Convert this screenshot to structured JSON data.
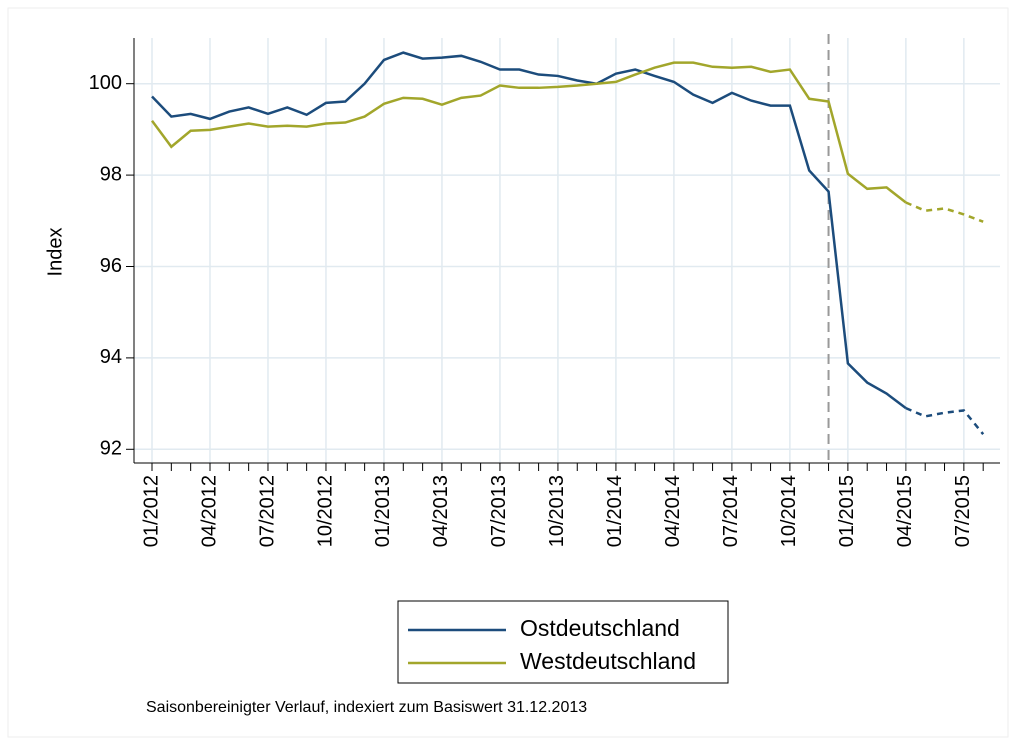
{
  "chart_data": {
    "type": "line",
    "y_label": "Index",
    "note": "Saisonbereinigter Verlauf, indexiert zum Basiswert 31.12.2013",
    "categories": [
      "01/2012",
      null,
      null,
      "04/2012",
      null,
      null,
      "07/2012",
      null,
      null,
      "10/2012",
      null,
      null,
      "01/2013",
      null,
      null,
      "04/2013",
      null,
      null,
      "07/2013",
      null,
      null,
      "10/2013",
      null,
      null,
      "01/2014",
      null,
      null,
      "04/2014",
      null,
      null,
      "07/2014",
      null,
      null,
      "10/2014",
      null,
      null,
      "01/2015",
      null,
      null,
      "04/2015",
      null,
      null,
      "07/2015",
      null
    ],
    "series": [
      {
        "name": "Ostdeutschland",
        "color": "#1c4c7c",
        "values": [
          99.72,
          99.28,
          99.34,
          99.23,
          99.39,
          99.48,
          99.34,
          99.48,
          99.32,
          99.58,
          99.61,
          100.0,
          100.52,
          100.68,
          100.55,
          100.57,
          100.61,
          100.48,
          100.31,
          100.31,
          100.2,
          100.17,
          100.07,
          100.0,
          100.22,
          100.31,
          100.17,
          100.04,
          99.76,
          99.58,
          99.8,
          99.63,
          99.52,
          99.52,
          98.1,
          97.64,
          93.88,
          93.46,
          93.22,
          92.9,
          92.72,
          92.8,
          92.85,
          92.33
        ]
      },
      {
        "name": "Westdeutschland",
        "color": "#a2a62b",
        "values": [
          99.19,
          98.62,
          98.97,
          98.99,
          99.06,
          99.13,
          99.06,
          99.08,
          99.06,
          99.13,
          99.15,
          99.28,
          99.56,
          99.69,
          99.67,
          99.54,
          99.69,
          99.74,
          99.96,
          99.91,
          99.91,
          99.93,
          99.96,
          100.0,
          100.04,
          100.2,
          100.35,
          100.46,
          100.46,
          100.37,
          100.35,
          100.37,
          100.26,
          100.31,
          99.67,
          99.61,
          98.03,
          97.7,
          97.73,
          97.4,
          97.22,
          97.27,
          97.14,
          96.98
        ]
      }
    ],
    "dashed_from_index": 39,
    "reference_line_index": 35,
    "ylim": [
      91.7,
      101.0
    ],
    "yticks": [
      92,
      94,
      96,
      98,
      100
    ],
    "grid": true,
    "legend": "bottom"
  }
}
